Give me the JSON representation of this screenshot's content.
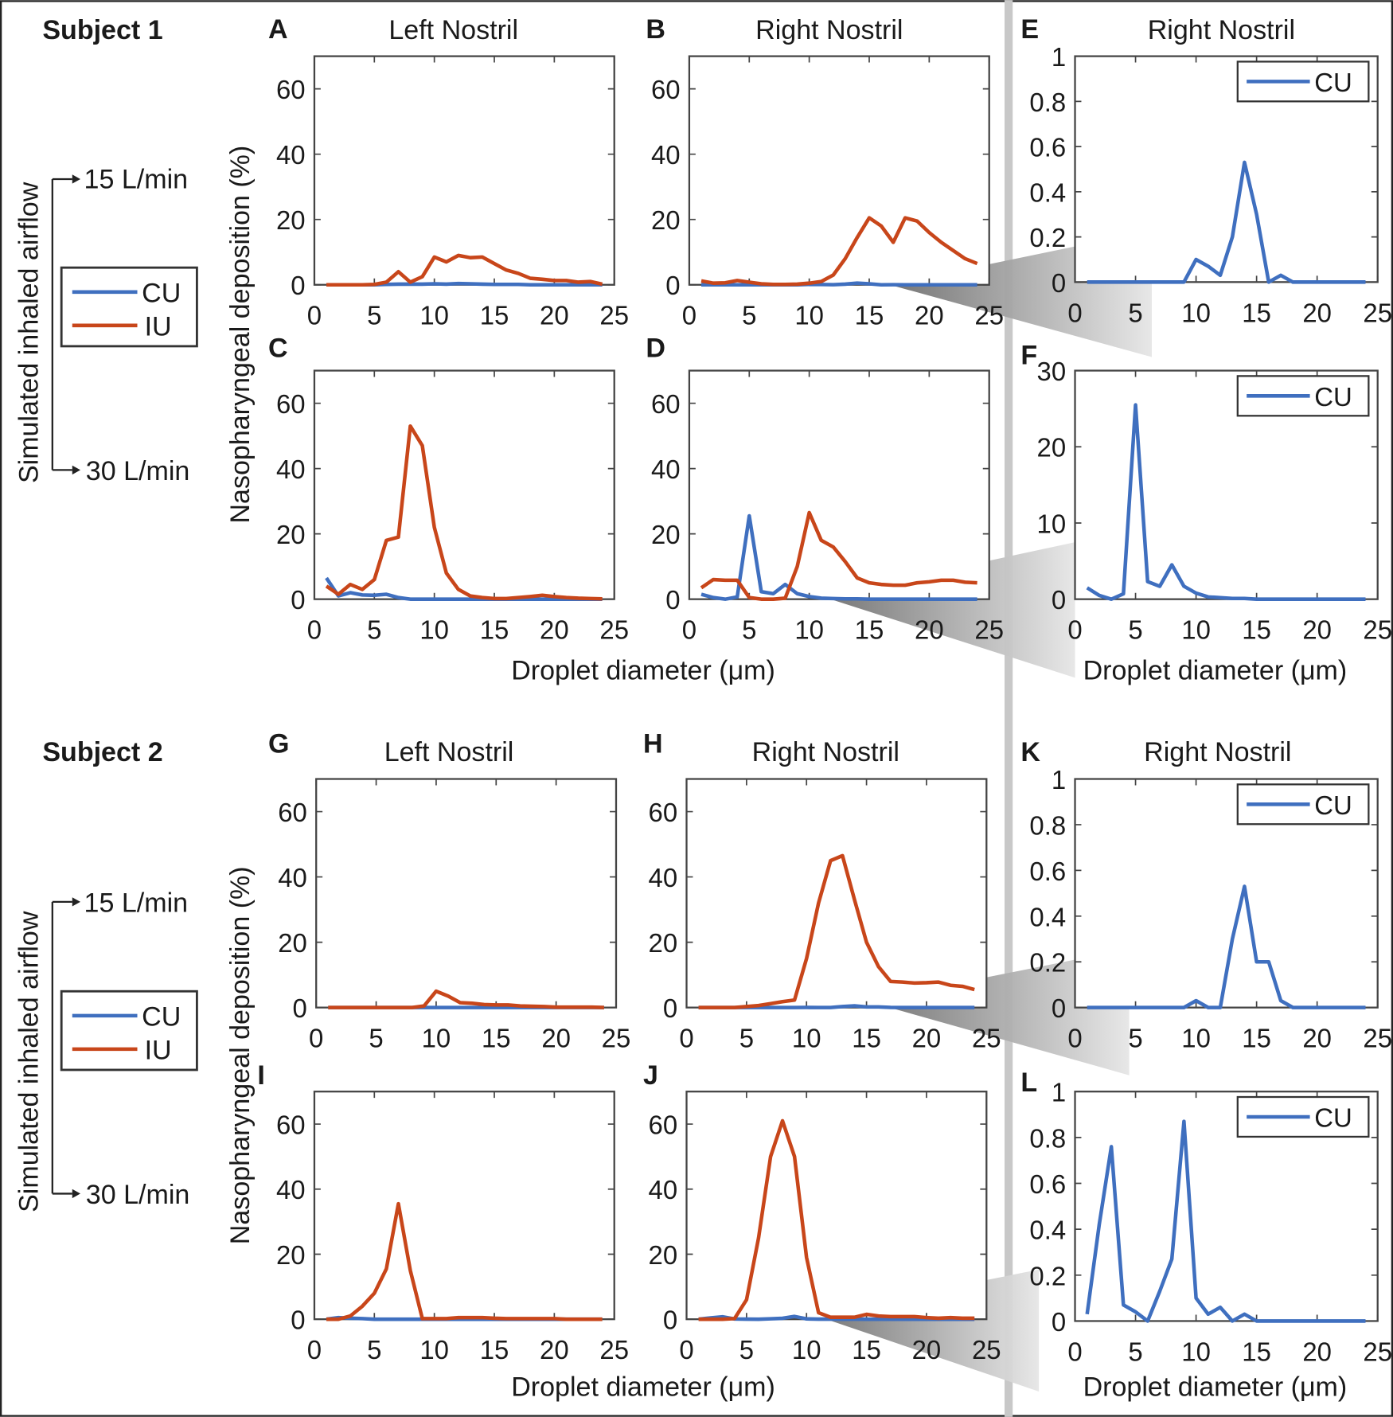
{
  "colors": {
    "CU": "#3f6fbf",
    "IU": "#c8461a",
    "divider": "#c8c8c8"
  },
  "labels": {
    "subject1": "Subject 1",
    "subject2": "Subject 2",
    "airflow": "Simulated inhaled airflow",
    "flow15": "15 L/min",
    "flow30": "30 L/min",
    "ylabel": "Nasopharyngeal deposition (%)",
    "xlabel": "Droplet diameter (μm)",
    "legend_cu": "CU",
    "legend_iu": "IU"
  },
  "chart_data": [
    {
      "type": "line",
      "panel": "A",
      "title": "Left Nostril",
      "subject": "Subject 1",
      "flow": "15 L/min",
      "xlim": [
        0,
        25
      ],
      "ylim": [
        0,
        70
      ],
      "yticks": [
        0,
        20,
        40,
        60
      ],
      "x": [
        1,
        2,
        3,
        4,
        5,
        6,
        7,
        8,
        9,
        10,
        11,
        12,
        13,
        14,
        15,
        16,
        17,
        18,
        19,
        20,
        21,
        22,
        23,
        24
      ],
      "series": [
        {
          "name": "CU",
          "values": [
            0,
            0,
            0,
            0,
            0,
            0.1,
            0.2,
            0.2,
            0.2,
            0.3,
            0.2,
            0.4,
            0.3,
            0.2,
            0.1,
            0.1,
            0.1,
            0,
            0,
            0,
            0,
            0,
            0,
            0
          ]
        },
        {
          "name": "IU",
          "values": [
            0,
            0,
            0,
            0,
            0.1,
            0.8,
            4,
            0.8,
            2.5,
            8.5,
            7,
            9,
            8.3,
            8.5,
            6.5,
            4.5,
            3.5,
            2,
            1.7,
            1.3,
            1.3,
            0.8,
            1,
            0.2
          ]
        }
      ]
    },
    {
      "type": "line",
      "panel": "B",
      "title": "Right Nostril",
      "subject": "Subject 1",
      "flow": "15 L/min",
      "xlim": [
        0,
        25
      ],
      "ylim": [
        0,
        70
      ],
      "yticks": [
        0,
        20,
        40,
        60
      ],
      "x": [
        1,
        2,
        3,
        4,
        5,
        6,
        7,
        8,
        9,
        10,
        11,
        12,
        13,
        14,
        15,
        16,
        17,
        18,
        19,
        20,
        21,
        22,
        23,
        24
      ],
      "series": [
        {
          "name": "CU",
          "values": [
            0,
            0,
            0,
            0,
            0,
            0,
            0,
            0,
            0,
            0.1,
            0.07,
            0.03,
            0.2,
            0.53,
            0.3,
            0,
            0.03,
            0,
            0,
            0,
            0,
            0,
            0,
            0
          ]
        },
        {
          "name": "IU",
          "values": [
            1.2,
            0.5,
            0.6,
            1.3,
            0.8,
            0.3,
            0.1,
            0.1,
            0.2,
            0.5,
            1,
            3,
            8,
            14.5,
            20.5,
            18,
            13,
            20.5,
            19.5,
            16,
            13,
            10.5,
            8,
            6.5
          ]
        }
      ]
    },
    {
      "type": "line",
      "panel": "E",
      "title": "Right Nostril",
      "subject": "Subject 1",
      "flow": "15 L/min",
      "xlim": [
        0,
        25
      ],
      "ylim": [
        0,
        1
      ],
      "yticks": [
        0,
        0.2,
        0.4,
        0.6,
        0.8,
        1
      ],
      "legend": "top-right",
      "x": [
        1,
        2,
        3,
        4,
        5,
        6,
        7,
        8,
        9,
        10,
        11,
        12,
        13,
        14,
        15,
        16,
        17,
        18,
        19,
        20,
        21,
        22,
        23,
        24
      ],
      "series": [
        {
          "name": "CU",
          "values": [
            0,
            0,
            0,
            0,
            0,
            0,
            0,
            0,
            0,
            0.1,
            0.07,
            0.03,
            0.2,
            0.53,
            0.3,
            0,
            0.03,
            0,
            0,
            0,
            0,
            0,
            0,
            0
          ]
        }
      ]
    },
    {
      "type": "line",
      "panel": "C",
      "title": "",
      "subject": "Subject 1",
      "flow": "30 L/min",
      "xlim": [
        0,
        25
      ],
      "ylim": [
        0,
        70
      ],
      "yticks": [
        0,
        20,
        40,
        60
      ],
      "x": [
        1,
        2,
        3,
        4,
        5,
        6,
        7,
        8,
        9,
        10,
        11,
        12,
        13,
        14,
        15,
        16,
        17,
        18,
        19,
        20,
        21,
        22,
        23,
        24
      ],
      "series": [
        {
          "name": "CU",
          "values": [
            6.5,
            1,
            2,
            1.3,
            1.2,
            1.5,
            0.5,
            0,
            0,
            0,
            0,
            0,
            0,
            0,
            0,
            0,
            0,
            0,
            0,
            0,
            0,
            0,
            0,
            0
          ]
        },
        {
          "name": "IU",
          "values": [
            4,
            1.5,
            4.5,
            3,
            6,
            18,
            19,
            53,
            47,
            22,
            8,
            3,
            1,
            0.5,
            0.2,
            0.2,
            0.5,
            0.8,
            1.2,
            0.8,
            0.5,
            0.3,
            0.2,
            0.1
          ]
        }
      ]
    },
    {
      "type": "line",
      "panel": "D",
      "title": "",
      "subject": "Subject 1",
      "flow": "30 L/min",
      "xlim": [
        0,
        25
      ],
      "ylim": [
        0,
        70
      ],
      "yticks": [
        0,
        20,
        40,
        60
      ],
      "x": [
        1,
        2,
        3,
        4,
        5,
        6,
        7,
        8,
        9,
        10,
        11,
        12,
        13,
        14,
        15,
        16,
        17,
        18,
        19,
        20,
        21,
        22,
        23,
        24
      ],
      "series": [
        {
          "name": "CU",
          "values": [
            1.5,
            0.5,
            0,
            0.7,
            25.5,
            2.3,
            1.7,
            4.5,
            1.7,
            0.8,
            0.3,
            0.2,
            0.1,
            0.1,
            0,
            0,
            0,
            0,
            0,
            0,
            0,
            0,
            0,
            0
          ]
        },
        {
          "name": "IU",
          "values": [
            3.5,
            6,
            5.8,
            5.8,
            0.5,
            0,
            0,
            0.3,
            10,
            26.5,
            18,
            16,
            11.5,
            6.5,
            5,
            4.5,
            4.3,
            4.3,
            5,
            5.3,
            5.8,
            5.8,
            5.2,
            5
          ]
        }
      ]
    },
    {
      "type": "line",
      "panel": "F",
      "title": "",
      "subject": "Subject 1",
      "flow": "30 L/min",
      "xlim": [
        0,
        25
      ],
      "ylim": [
        0,
        30
      ],
      "yticks": [
        0,
        10,
        20,
        30
      ],
      "legend": "top-right",
      "x": [
        1,
        2,
        3,
        4,
        5,
        6,
        7,
        8,
        9,
        10,
        11,
        12,
        13,
        14,
        15,
        16,
        17,
        18,
        19,
        20,
        21,
        22,
        23,
        24
      ],
      "series": [
        {
          "name": "CU",
          "values": [
            1.5,
            0.5,
            0,
            0.7,
            25.5,
            2.3,
            1.7,
            4.5,
            1.7,
            0.8,
            0.3,
            0.2,
            0.1,
            0.1,
            0,
            0,
            0,
            0,
            0,
            0,
            0,
            0,
            0,
            0
          ]
        }
      ]
    },
    {
      "type": "line",
      "panel": "G",
      "title": "Left Nostril",
      "subject": "Subject 2",
      "flow": "15 L/min",
      "xlim": [
        0,
        25
      ],
      "ylim": [
        0,
        70
      ],
      "yticks": [
        0,
        20,
        40,
        60
      ],
      "x": [
        1,
        2,
        3,
        4,
        5,
        6,
        7,
        8,
        9,
        10,
        11,
        12,
        13,
        14,
        15,
        16,
        17,
        18,
        19,
        20,
        21,
        22,
        23,
        24
      ],
      "series": [
        {
          "name": "CU",
          "values": [
            0,
            0,
            0,
            0,
            0,
            0,
            0,
            0,
            0,
            0,
            0,
            0,
            0,
            0,
            0,
            0,
            0,
            0,
            0,
            0,
            0,
            0,
            0,
            0
          ]
        },
        {
          "name": "IU",
          "values": [
            0,
            0,
            0,
            0,
            0,
            0,
            0,
            0,
            0.5,
            5,
            3.5,
            1.5,
            1.3,
            0.9,
            0.8,
            0.8,
            0.5,
            0.4,
            0.3,
            0.1,
            0.1,
            0.1,
            0.1,
            0
          ]
        }
      ]
    },
    {
      "type": "line",
      "panel": "H",
      "title": "Right Nostril",
      "subject": "Subject 2",
      "flow": "15 L/min",
      "xlim": [
        0,
        25
      ],
      "ylim": [
        0,
        70
      ],
      "yticks": [
        0,
        20,
        40,
        60
      ],
      "x": [
        1,
        2,
        3,
        4,
        5,
        6,
        7,
        8,
        9,
        10,
        11,
        12,
        13,
        14,
        15,
        16,
        17,
        18,
        19,
        20,
        21,
        22,
        23,
        24
      ],
      "series": [
        {
          "name": "CU",
          "values": [
            0,
            0,
            0,
            0,
            0,
            0,
            0,
            0,
            0,
            0.03,
            0,
            0,
            0.3,
            0.53,
            0.2,
            0.2,
            0.03,
            0,
            0,
            0,
            0,
            0,
            0,
            0
          ]
        },
        {
          "name": "IU",
          "values": [
            0,
            0,
            0,
            0,
            0.3,
            0.6,
            1.2,
            1.8,
            2.3,
            15,
            32,
            45,
            46.5,
            33,
            20,
            12.5,
            8,
            7.8,
            7.5,
            7.6,
            7.8,
            6.8,
            6.5,
            5.5
          ]
        }
      ]
    },
    {
      "type": "line",
      "panel": "K",
      "title": "Right Nostril",
      "subject": "Subject 2",
      "flow": "15 L/min",
      "xlim": [
        0,
        25
      ],
      "ylim": [
        0,
        1
      ],
      "yticks": [
        0,
        0.2,
        0.4,
        0.6,
        0.8,
        1
      ],
      "legend": "top-right",
      "x": [
        1,
        2,
        3,
        4,
        5,
        6,
        7,
        8,
        9,
        10,
        11,
        12,
        13,
        14,
        15,
        16,
        17,
        18,
        19,
        20,
        21,
        22,
        23,
        24
      ],
      "series": [
        {
          "name": "CU",
          "values": [
            0,
            0,
            0,
            0,
            0,
            0,
            0,
            0,
            0,
            0.03,
            0,
            0,
            0.3,
            0.53,
            0.2,
            0.2,
            0.03,
            0,
            0,
            0,
            0,
            0,
            0,
            0
          ]
        }
      ]
    },
    {
      "type": "line",
      "panel": "I",
      "title": "",
      "subject": "Subject 2",
      "flow": "30 L/min",
      "xlim": [
        0,
        25
      ],
      "ylim": [
        0,
        70
      ],
      "yticks": [
        0,
        20,
        40,
        60
      ],
      "x": [
        1,
        2,
        3,
        4,
        5,
        6,
        7,
        8,
        9,
        10,
        11,
        12,
        13,
        14,
        15,
        16,
        17,
        18,
        19,
        20,
        21,
        22,
        23,
        24
      ],
      "series": [
        {
          "name": "CU",
          "values": [
            0,
            0.5,
            0.3,
            0.2,
            0,
            0,
            0,
            0,
            0,
            0,
            0,
            0,
            0,
            0,
            0,
            0,
            0,
            0,
            0,
            0,
            0,
            0,
            0,
            0
          ]
        },
        {
          "name": "IU",
          "values": [
            0,
            0,
            1,
            4,
            8,
            15.5,
            35.5,
            15,
            0.2,
            0.2,
            0.2,
            0.5,
            0.5,
            0.5,
            0.3,
            0.2,
            0.2,
            0.2,
            0.2,
            0.2,
            0,
            0,
            0,
            0
          ]
        }
      ]
    },
    {
      "type": "line",
      "panel": "J",
      "title": "",
      "subject": "Subject 2",
      "flow": "30 L/min",
      "xlim": [
        0,
        25
      ],
      "ylim": [
        0,
        70
      ],
      "yticks": [
        0,
        20,
        40,
        60
      ],
      "x": [
        1,
        2,
        3,
        4,
        5,
        6,
        7,
        8,
        9,
        10,
        11,
        12,
        13,
        14,
        15,
        16,
        17,
        18,
        19,
        20,
        21,
        22,
        23,
        24
      ],
      "series": [
        {
          "name": "CU",
          "values": [
            0.03,
            0.42,
            0.76,
            0.07,
            0.04,
            0,
            0.13,
            0.27,
            0.87,
            0.1,
            0.03,
            0.06,
            0,
            0.03,
            0,
            0,
            0,
            0,
            0,
            0,
            0,
            0,
            0,
            0
          ]
        },
        {
          "name": "IU",
          "values": [
            0,
            0,
            0,
            0.2,
            6,
            25,
            50,
            61,
            50,
            19,
            2,
            0.6,
            0.6,
            0.6,
            1.5,
            1,
            0.8,
            0.8,
            0.8,
            0.5,
            0.3,
            0.5,
            0.3,
            0.3
          ]
        }
      ]
    },
    {
      "type": "line",
      "panel": "L",
      "title": "",
      "subject": "Subject 2",
      "flow": "30 L/min",
      "xlim": [
        0,
        25
      ],
      "ylim": [
        0,
        1
      ],
      "yticks": [
        0,
        0.2,
        0.4,
        0.6,
        0.8,
        1
      ],
      "legend": "top-right",
      "x": [
        1,
        2,
        3,
        4,
        5,
        6,
        7,
        8,
        9,
        10,
        11,
        12,
        13,
        14,
        15,
        16,
        17,
        18,
        19,
        20,
        21,
        22,
        23,
        24
      ],
      "series": [
        {
          "name": "CU",
          "values": [
            0.03,
            0.42,
            0.76,
            0.07,
            0.04,
            0,
            0.13,
            0.27,
            0.87,
            0.1,
            0.03,
            0.06,
            0,
            0.03,
            0,
            0,
            0,
            0,
            0,
            0,
            0,
            0,
            0,
            0
          ]
        }
      ]
    }
  ]
}
